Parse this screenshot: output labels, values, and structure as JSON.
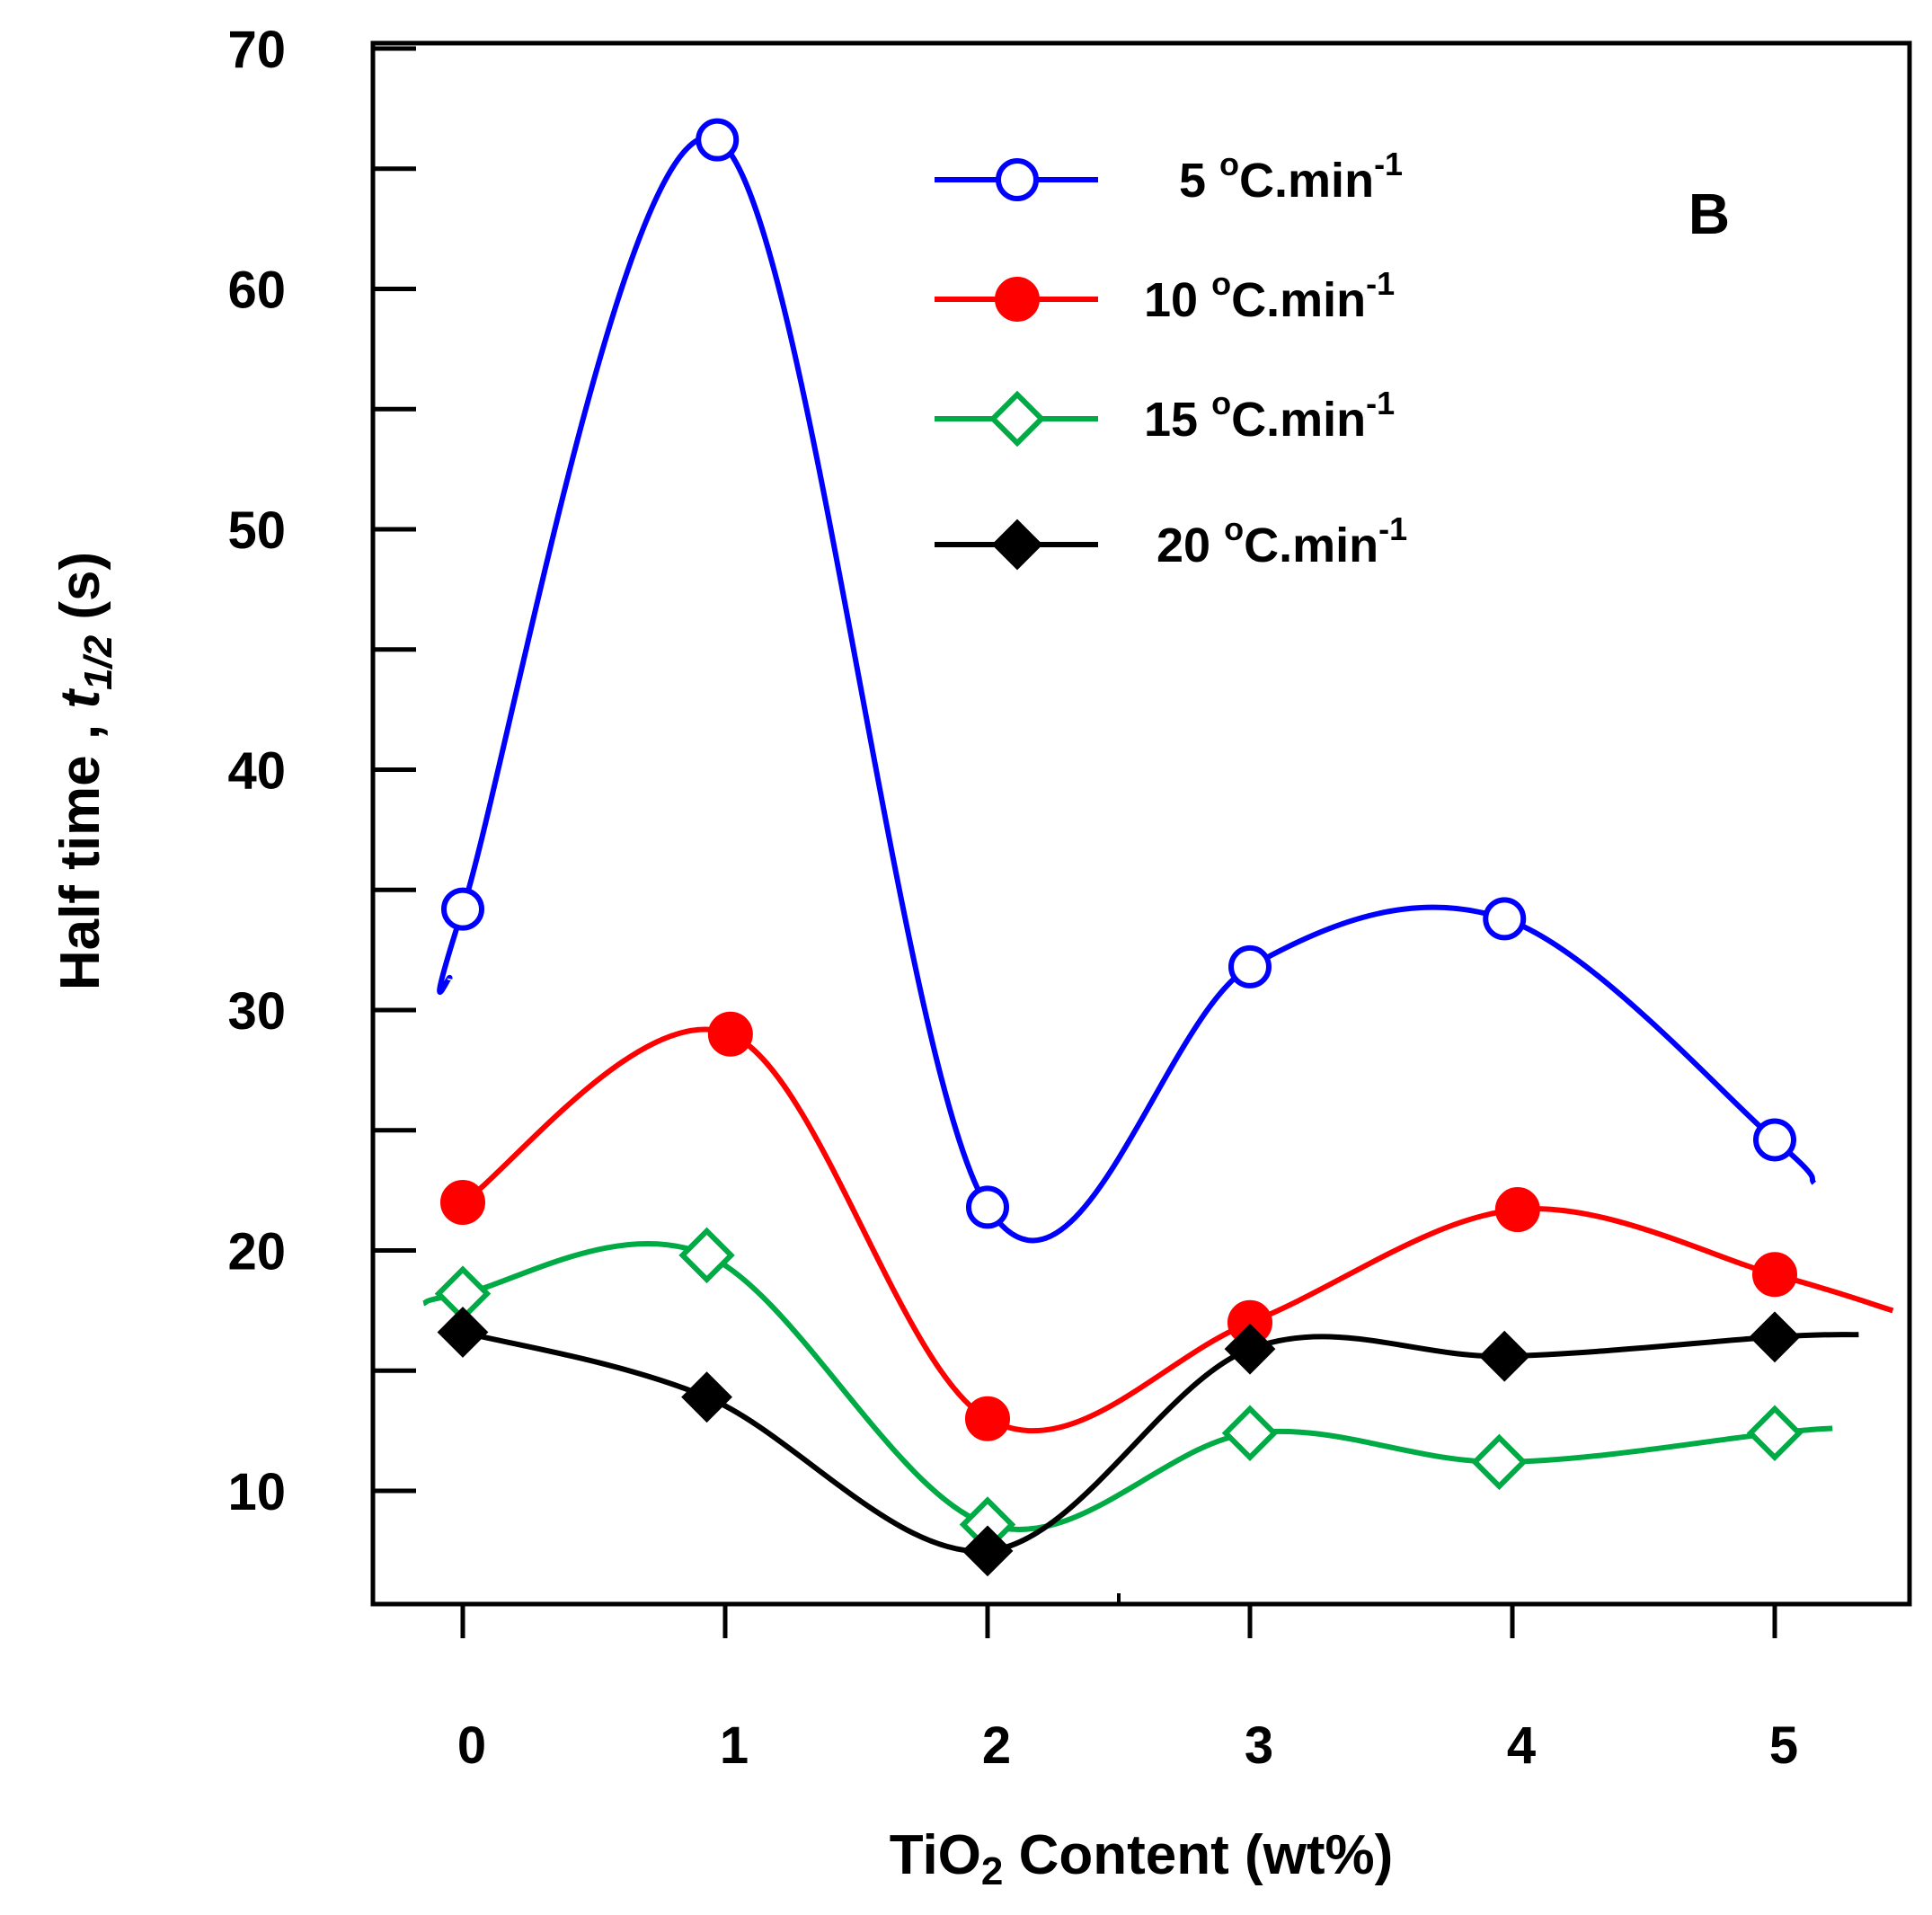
{
  "chart_data": {
    "type": "line",
    "panel_label": "B",
    "xlabel": {
      "pre": "TiO",
      "sub": "2",
      "post": " Content (wt%)"
    },
    "ylabel": {
      "main": "Half time , ",
      "italic": "t",
      "sub": "1/2",
      "unit": " (s)"
    },
    "x": [
      0,
      1,
      2,
      3,
      4,
      5
    ],
    "xlim": [
      -0.35,
      5.45
    ],
    "ylim": [
      5,
      70
    ],
    "x_ticks": [
      "0",
      "1",
      "2",
      "3",
      "4",
      "5"
    ],
    "y_ticks": [
      "10",
      "20",
      "30",
      "40",
      "50",
      "60",
      "70"
    ],
    "legend_position": "top-right",
    "grid": false,
    "series": [
      {
        "name": "5 oC.min-1",
        "rate": "5",
        "unit": "oC.min",
        "sup": "-1",
        "color": "#0000ff",
        "marker": "open-circle",
        "values": [
          34.2,
          66.2,
          21.8,
          31.8,
          33.8,
          24.6
        ],
        "x_points": [
          0,
          0.97,
          2.0,
          3.0,
          3.97,
          5.0
        ]
      },
      {
        "name": "10 oC.min-1",
        "rate": "10",
        "unit": "oC.min",
        "sup": "-1",
        "color": "#ff0000",
        "marker": "filled-circle",
        "values": [
          22.0,
          29.0,
          13.0,
          17.0,
          21.7,
          19.0
        ],
        "x_points": [
          0,
          1.02,
          2.0,
          3.0,
          4.02,
          5.0
        ]
      },
      {
        "name": "15 oC.min-1",
        "rate": "15",
        "unit": "oC.min",
        "sup": "-1",
        "color": "#00aa44",
        "marker": "open-diamond",
        "values": [
          18.2,
          19.8,
          8.6,
          12.4,
          11.2,
          12.4
        ],
        "x_points": [
          0,
          0.93,
          2.0,
          3.0,
          3.95,
          5.0
        ]
      },
      {
        "name": "20 oC.min-1",
        "rate": "20",
        "unit": "oC.min",
        "sup": "-1",
        "color": "#000000",
        "marker": "filled-diamond",
        "values": [
          16.6,
          13.9,
          7.5,
          15.9,
          15.6,
          16.4
        ],
        "x_points": [
          0,
          0.93,
          2.0,
          3.0,
          3.97,
          5.0
        ]
      }
    ]
  }
}
